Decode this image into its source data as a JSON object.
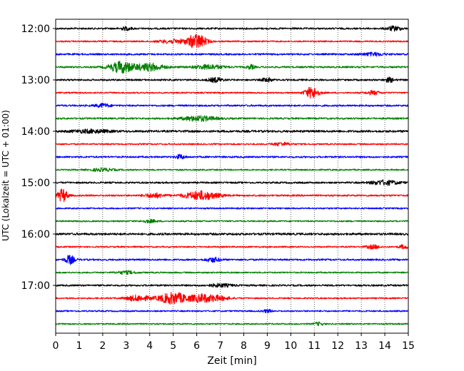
{
  "chart_data": {
    "type": "line",
    "title": "",
    "xlabel": "Zeit  [min]",
    "ylabel": "UTC (Lokalzeit = UTC + 01:00)",
    "xlim": [
      0,
      15
    ],
    "x_ticks": [
      "0",
      "1",
      "2",
      "3",
      "4",
      "5",
      "6",
      "7",
      "8",
      "9",
      "10",
      "11",
      "12",
      "13",
      "14",
      "15"
    ],
    "y_tick_labels": [
      "12:00",
      "13:00",
      "14:00",
      "15:00",
      "16:00",
      "17:00"
    ],
    "grid": "vertical dotted",
    "trace_interval_min": 15,
    "colors": [
      "#000000",
      "#ff0000",
      "#0000ff",
      "#008000"
    ],
    "series": [
      {
        "start": "12:00",
        "color": "#000000",
        "noise": 1.2,
        "events": [
          {
            "t": 3.0,
            "amp": 2.0,
            "w": 0.25
          },
          {
            "t": 14.4,
            "amp": 3.0,
            "w": 0.3
          }
        ]
      },
      {
        "start": "12:15",
        "color": "#ff0000",
        "noise": 1.0,
        "events": [
          {
            "t": 6.0,
            "amp": 10.0,
            "w": 0.4
          },
          {
            "t": 5.0,
            "amp": 2.5,
            "w": 0.6
          }
        ]
      },
      {
        "start": "12:30",
        "color": "#0000ff",
        "noise": 1.2,
        "events": [
          {
            "t": 13.5,
            "amp": 2.0,
            "w": 0.5
          }
        ]
      },
      {
        "start": "12:45",
        "color": "#008000",
        "noise": 1.2,
        "events": [
          {
            "t": 2.8,
            "amp": 8.0,
            "w": 0.5
          },
          {
            "t": 4.0,
            "amp": 5.0,
            "w": 0.6
          },
          {
            "t": 6.5,
            "amp": 3.0,
            "w": 0.6
          },
          {
            "t": 8.3,
            "amp": 3.0,
            "w": 0.15
          }
        ]
      },
      {
        "start": "13:00",
        "color": "#000000",
        "noise": 1.2,
        "events": [
          {
            "t": 6.8,
            "amp": 3.0,
            "w": 0.3
          },
          {
            "t": 9.0,
            "amp": 3.0,
            "w": 0.2
          },
          {
            "t": 14.2,
            "amp": 3.0,
            "w": 0.2
          }
        ]
      },
      {
        "start": "13:15",
        "color": "#ff0000",
        "noise": 1.0,
        "events": [
          {
            "t": 10.9,
            "amp": 8.0,
            "w": 0.3
          },
          {
            "t": 13.5,
            "amp": 2.5,
            "w": 0.3
          }
        ]
      },
      {
        "start": "13:30",
        "color": "#0000ff",
        "noise": 1.2,
        "events": [
          {
            "t": 2.0,
            "amp": 2.5,
            "w": 0.3
          }
        ]
      },
      {
        "start": "13:45",
        "color": "#008000",
        "noise": 1.2,
        "events": [
          {
            "t": 6.1,
            "amp": 3.5,
            "w": 0.7
          }
        ]
      },
      {
        "start": "14:00",
        "color": "#000000",
        "noise": 1.5,
        "events": [
          {
            "t": 1.5,
            "amp": 2.0,
            "w": 0.8
          }
        ]
      },
      {
        "start": "14:15",
        "color": "#ff0000",
        "noise": 1.0,
        "events": [
          {
            "t": 9.6,
            "amp": 2.0,
            "w": 0.4
          }
        ]
      },
      {
        "start": "14:30",
        "color": "#0000ff",
        "noise": 1.2,
        "events": [
          {
            "t": 5.3,
            "amp": 3.0,
            "w": 0.2
          }
        ]
      },
      {
        "start": "14:45",
        "color": "#008000",
        "noise": 1.0,
        "events": [
          {
            "t": 2.0,
            "amp": 2.0,
            "w": 0.5
          }
        ]
      },
      {
        "start": "15:00",
        "color": "#000000",
        "noise": 1.2,
        "events": [
          {
            "t": 14.0,
            "amp": 3.0,
            "w": 0.6
          }
        ]
      },
      {
        "start": "15:15",
        "color": "#ff0000",
        "noise": 1.2,
        "events": [
          {
            "t": 0.3,
            "amp": 9.0,
            "w": 0.2
          },
          {
            "t": 6.2,
            "amp": 6.0,
            "w": 0.7
          },
          {
            "t": 4.2,
            "amp": 3.0,
            "w": 0.4
          }
        ]
      },
      {
        "start": "15:30",
        "color": "#0000ff",
        "noise": 1.0,
        "events": []
      },
      {
        "start": "15:45",
        "color": "#008000",
        "noise": 1.0,
        "events": [
          {
            "t": 4.0,
            "amp": 2.0,
            "w": 0.3
          }
        ]
      },
      {
        "start": "16:00",
        "color": "#000000",
        "noise": 1.5,
        "events": []
      },
      {
        "start": "16:15",
        "color": "#ff0000",
        "noise": 1.0,
        "events": [
          {
            "t": 13.5,
            "amp": 2.5,
            "w": 0.3
          },
          {
            "t": 14.8,
            "amp": 2.5,
            "w": 0.2
          }
        ]
      },
      {
        "start": "16:30",
        "color": "#0000ff",
        "noise": 1.2,
        "events": [
          {
            "t": 0.6,
            "amp": 6.0,
            "w": 0.2
          },
          {
            "t": 6.7,
            "amp": 3.0,
            "w": 0.3
          }
        ]
      },
      {
        "start": "16:45",
        "color": "#008000",
        "noise": 1.0,
        "events": [
          {
            "t": 3.0,
            "amp": 2.0,
            "w": 0.4
          }
        ]
      },
      {
        "start": "17:00",
        "color": "#000000",
        "noise": 1.2,
        "events": [
          {
            "t": 7.0,
            "amp": 2.0,
            "w": 0.5
          }
        ]
      },
      {
        "start": "17:15",
        "color": "#ff0000",
        "noise": 1.0,
        "events": [
          {
            "t": 5.0,
            "amp": 8.0,
            "w": 0.6
          },
          {
            "t": 3.5,
            "amp": 4.0,
            "w": 0.5
          },
          {
            "t": 6.2,
            "amp": 5.0,
            "w": 0.5
          },
          {
            "t": 6.9,
            "amp": 3.0,
            "w": 0.5
          }
        ]
      },
      {
        "start": "17:30",
        "color": "#0000ff",
        "noise": 1.0,
        "events": [
          {
            "t": 9.0,
            "amp": 2.0,
            "w": 0.2
          }
        ]
      },
      {
        "start": "17:45",
        "color": "#008000",
        "noise": 1.0,
        "events": [
          {
            "t": 11.2,
            "amp": 2.0,
            "w": 0.2
          }
        ]
      }
    ]
  }
}
